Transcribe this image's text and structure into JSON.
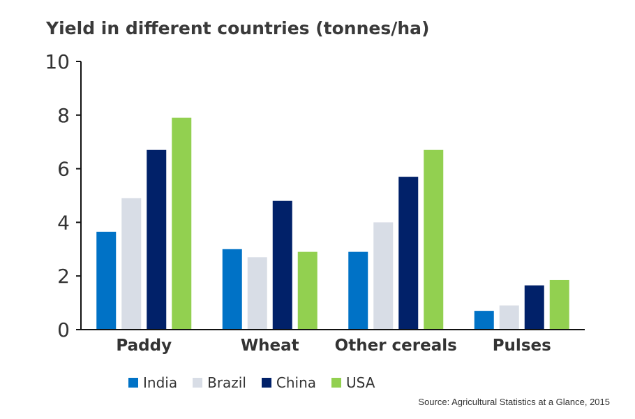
{
  "chart_data": {
    "type": "bar",
    "title": "Yield in different countries (tonnes/ha)",
    "xlabel": "",
    "ylabel": "",
    "categories": [
      "Paddy",
      "Wheat",
      "Other cereals",
      "Pulses"
    ],
    "series": [
      {
        "name": "India",
        "color": "#0072c6",
        "values": [
          3.65,
          3.0,
          2.9,
          0.7
        ]
      },
      {
        "name": "Brazil",
        "color": "#d8dde6",
        "values": [
          4.9,
          2.7,
          4.0,
          0.9
        ]
      },
      {
        "name": "China",
        "color": "#012169",
        "values": [
          6.7,
          4.8,
          5.7,
          1.65
        ]
      },
      {
        "name": "USA",
        "color": "#92d050",
        "values": [
          7.9,
          2.9,
          6.7,
          1.85
        ]
      }
    ],
    "yticks": [
      "0",
      "2",
      "4",
      "6",
      "8",
      "10"
    ],
    "ylim": [
      0,
      10
    ],
    "grid": false,
    "legend_position": "bottom"
  },
  "source_note": "Source: Agricultural Statistics at a Glance, 2015"
}
